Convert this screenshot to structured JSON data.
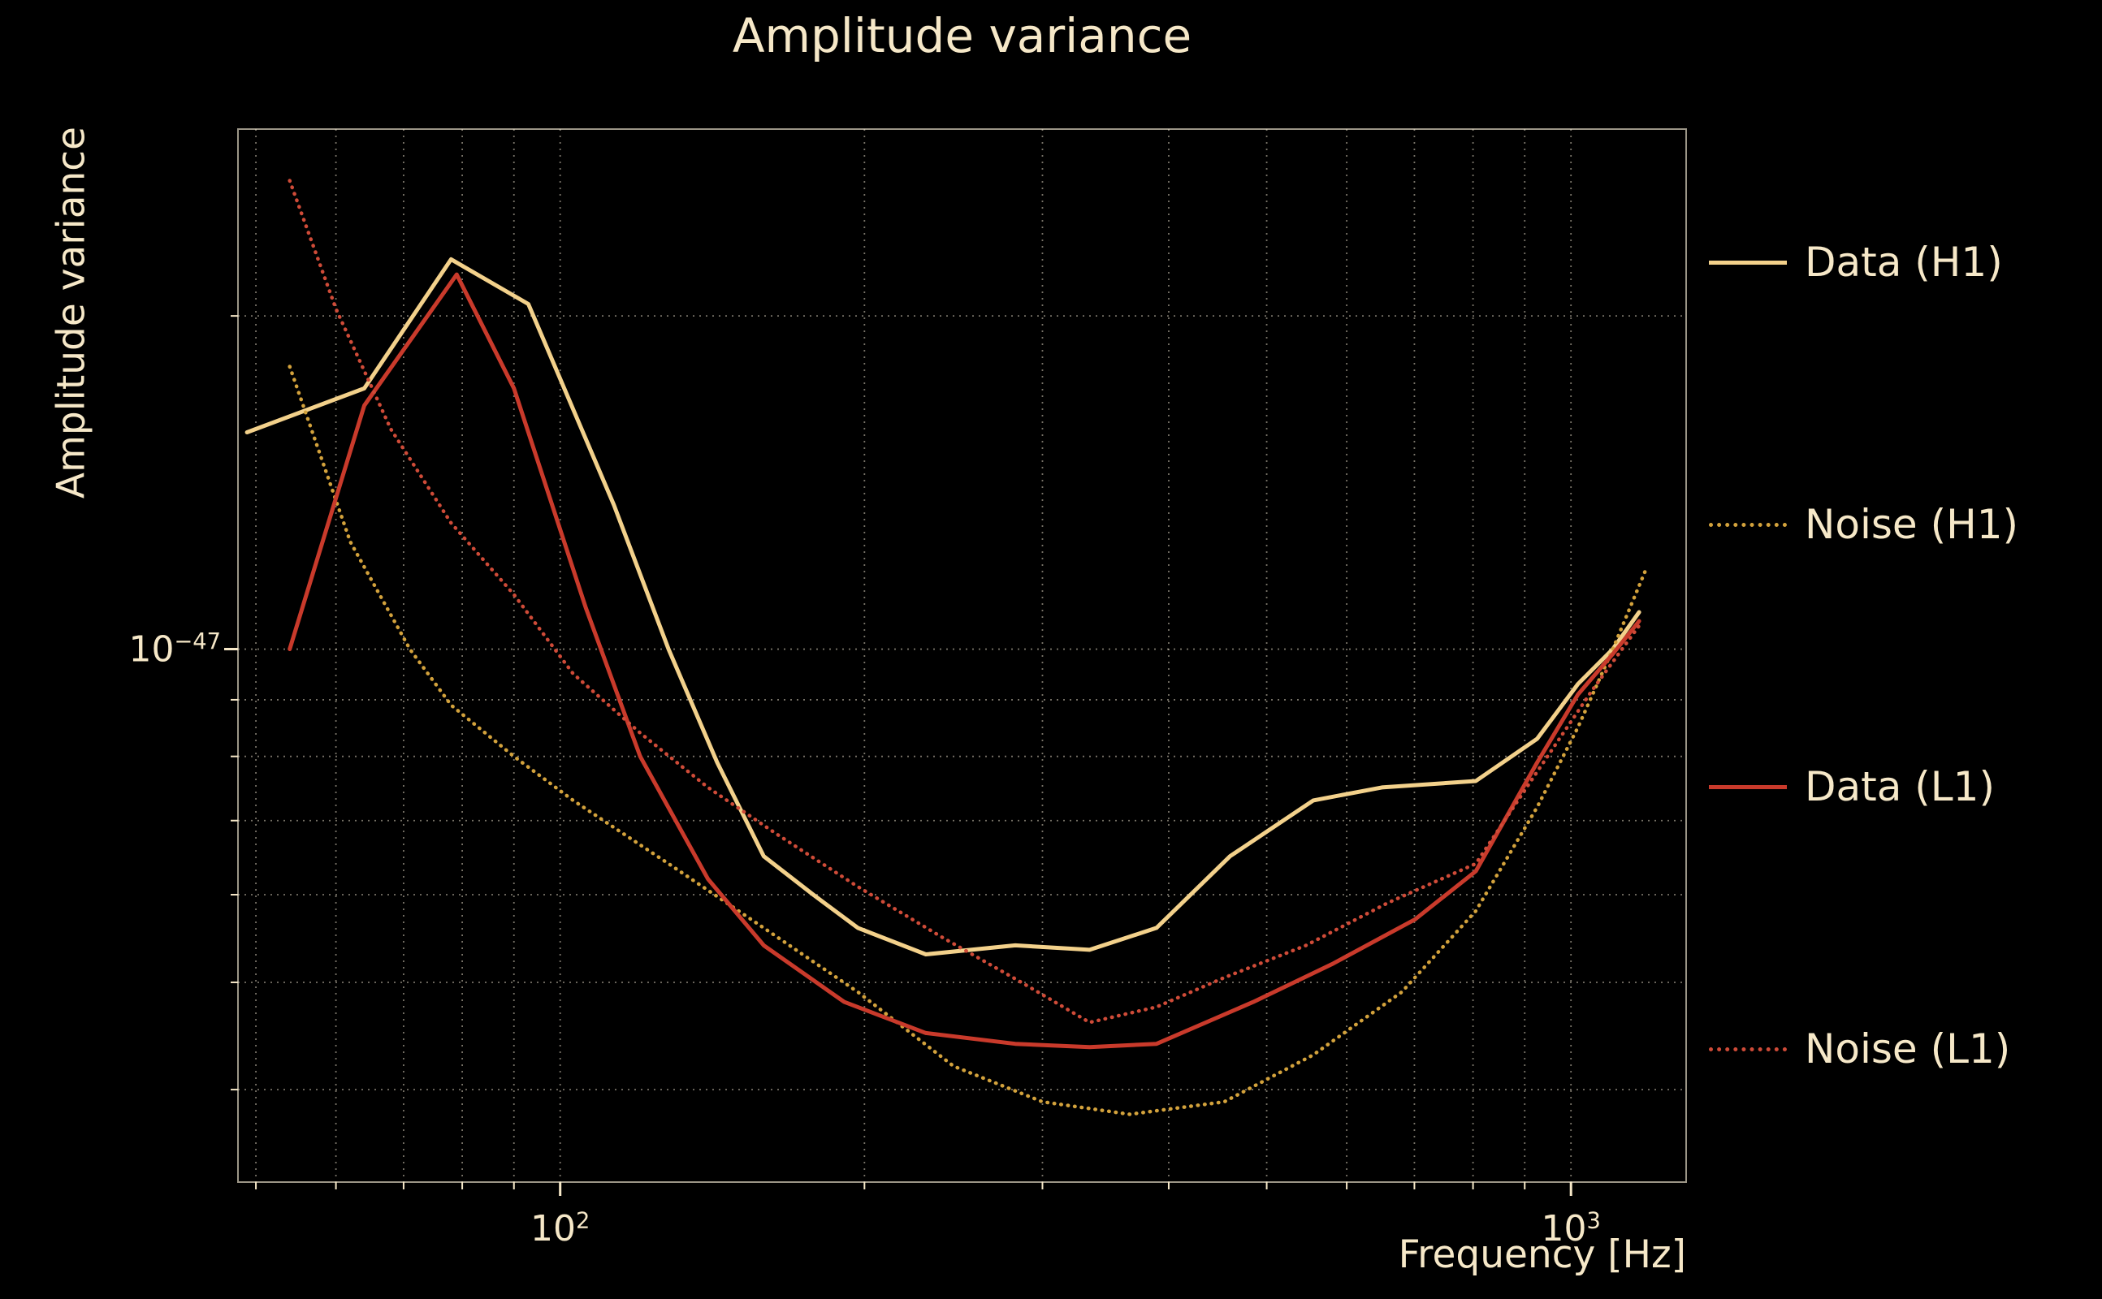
{
  "colors": {
    "background": "#000000",
    "text": "#f6e8c8",
    "grid": "#efe6d0"
  },
  "legend": {
    "position": "right-outside",
    "entries": [
      {
        "label": "Data (H1)",
        "style": "solid",
        "color": "#f3d18b"
      },
      {
        "label": "Noise (H1)",
        "style": "dotted",
        "color": "#d3a23c"
      },
      {
        "label": "Data (L1)",
        "style": "solid",
        "color": "#c93a2b"
      },
      {
        "label": "Noise (L1)",
        "style": "dotted",
        "color": "#cf4b38"
      }
    ]
  },
  "chart_data": {
    "type": "line",
    "title": "Amplitude variance",
    "xlabel": "Frequency [Hz]",
    "ylabel": "Amplitude variance",
    "xscale": "log",
    "yscale": "log",
    "xlim": [
      48,
      1300
    ],
    "ylim": [
      3.3e-48,
      2.95e-47
    ],
    "grid": true,
    "x_gridlines": [
      50,
      60,
      70,
      80,
      90,
      100,
      200,
      300,
      400,
      500,
      600,
      700,
      800,
      900,
      1000
    ],
    "y_gridlines": [
      4e-48,
      5e-48,
      6e-48,
      7e-48,
      8e-48,
      9e-48,
      1e-47,
      2e-47
    ],
    "x_ticks_major": [
      {
        "value": 100,
        "base": "10",
        "exp": "2"
      },
      {
        "value": 1000,
        "base": "10",
        "exp": "3"
      }
    ],
    "x_ticks_minor": [
      50,
      60,
      70,
      80,
      90,
      200,
      300,
      400,
      500,
      600,
      700,
      800,
      900
    ],
    "y_ticks_major": [
      {
        "value": 1e-47,
        "base": "10",
        "exp": "−47"
      }
    ],
    "y_ticks_minor": [
      4e-48,
      5e-48,
      6e-48,
      7e-48,
      8e-48,
      9e-48,
      2e-47
    ],
    "series": [
      {
        "name": "Data (H1)",
        "color": "#f3d18b",
        "linestyle": "solid",
        "points": [
          [
            49,
            1.57e-47
          ],
          [
            64,
            1.72e-47
          ],
          [
            78,
            2.25e-47
          ],
          [
            93,
            2.05e-47
          ],
          [
            113,
            1.35e-47
          ],
          [
            128,
            1e-47
          ],
          [
            143,
            7.9e-48
          ],
          [
            159,
            6.5e-48
          ],
          [
            178,
            6e-48
          ],
          [
            197,
            5.6e-48
          ],
          [
            230,
            5.3e-48
          ],
          [
            282,
            5.4e-48
          ],
          [
            334,
            5.35e-48
          ],
          [
            389,
            5.6e-48
          ],
          [
            460,
            6.5e-48
          ],
          [
            556,
            7.3e-48
          ],
          [
            650,
            7.5e-48
          ],
          [
            805,
            7.6e-48
          ],
          [
            926,
            8.3e-48
          ],
          [
            1016,
            9.3e-48
          ],
          [
            1100,
            1e-47
          ],
          [
            1168,
            1.08e-47
          ]
        ]
      },
      {
        "name": "Noise (H1)",
        "color": "#d3a23c",
        "linestyle": "dotted",
        "points": [
          [
            54,
            1.8e-47
          ],
          [
            62,
            1.25e-47
          ],
          [
            71,
            1e-47
          ],
          [
            78,
            8.9e-48
          ],
          [
            90,
            8e-48
          ],
          [
            103,
            7.3e-48
          ],
          [
            128,
            6.4e-48
          ],
          [
            159,
            5.6e-48
          ],
          [
            197,
            4.9e-48
          ],
          [
            245,
            4.2e-48
          ],
          [
            300,
            3.9e-48
          ],
          [
            366,
            3.8e-48
          ],
          [
            454,
            3.9e-48
          ],
          [
            556,
            4.3e-48
          ],
          [
            680,
            4.9e-48
          ],
          [
            805,
            5.8e-48
          ],
          [
            926,
            7.2e-48
          ],
          [
            1016,
            8.5e-48
          ],
          [
            1100,
            1e-47
          ],
          [
            1186,
            1.18e-47
          ]
        ]
      },
      {
        "name": "Data (L1)",
        "color": "#c93a2b",
        "linestyle": "solid",
        "points": [
          [
            54,
            1e-47
          ],
          [
            64,
            1.66e-47
          ],
          [
            79,
            2.18e-47
          ],
          [
            90,
            1.72e-47
          ],
          [
            106,
            1.09e-47
          ],
          [
            120,
            8e-48
          ],
          [
            140,
            6.2e-48
          ],
          [
            159,
            5.4e-48
          ],
          [
            191,
            4.8e-48
          ],
          [
            230,
            4.5e-48
          ],
          [
            282,
            4.4e-48
          ],
          [
            334,
            4.37e-48
          ],
          [
            389,
            4.4e-48
          ],
          [
            485,
            4.8e-48
          ],
          [
            582,
            5.2e-48
          ],
          [
            701,
            5.7e-48
          ],
          [
            805,
            6.3e-48
          ],
          [
            926,
            7.9e-48
          ],
          [
            1016,
            9.1e-48
          ],
          [
            1100,
            9.9e-48
          ],
          [
            1168,
            1.06e-47
          ]
        ]
      },
      {
        "name": "Noise (L1)",
        "color": "#cf4b38",
        "linestyle": "dotted",
        "points": [
          [
            54,
            2.65e-47
          ],
          [
            60,
            2.03e-47
          ],
          [
            68,
            1.58e-47
          ],
          [
            78,
            1.3e-47
          ],
          [
            90,
            1.12e-47
          ],
          [
            103,
            9.5e-48
          ],
          [
            120,
            8.4e-48
          ],
          [
            140,
            7.5e-48
          ],
          [
            164,
            6.8e-48
          ],
          [
            197,
            6.1e-48
          ],
          [
            238,
            5.5e-48
          ],
          [
            286,
            5e-48
          ],
          [
            334,
            4.6e-48
          ],
          [
            389,
            4.75e-48
          ],
          [
            454,
            5.05e-48
          ],
          [
            547,
            5.4e-48
          ],
          [
            659,
            5.9e-48
          ],
          [
            805,
            6.4e-48
          ],
          [
            926,
            7.75e-48
          ],
          [
            1047,
            9.15e-48
          ],
          [
            1168,
            1.05e-47
          ]
        ]
      }
    ]
  }
}
